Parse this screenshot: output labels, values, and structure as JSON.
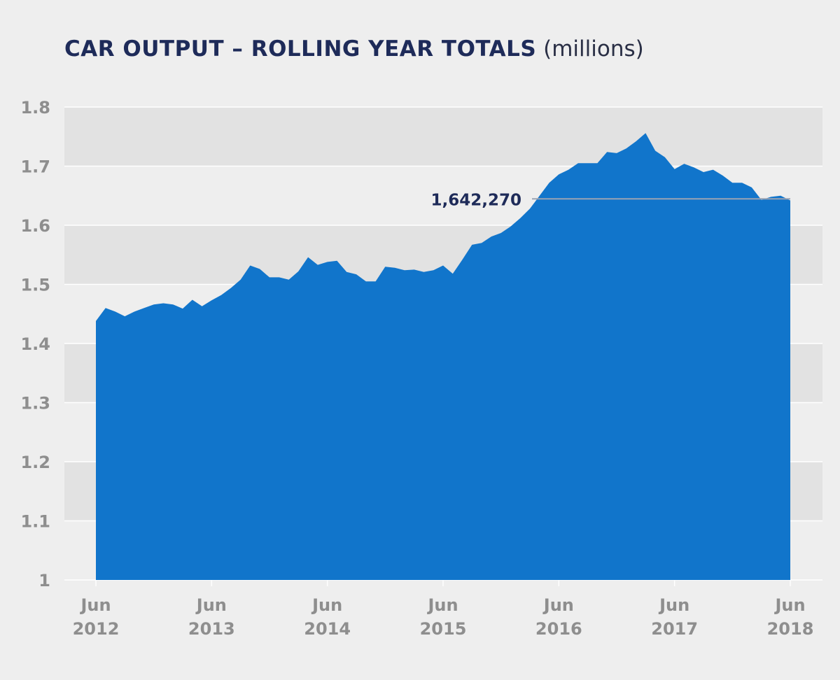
{
  "title": {
    "main": "CAR OUTPUT – ROLLING YEAR TOTALS",
    "unit": "(millions)"
  },
  "colors": {
    "area": "#1175cb",
    "band": "#e2e2e2",
    "grid": "#ffffff",
    "background": "#eeeeee",
    "callout_line": "#9aa3b3"
  },
  "chart_data": {
    "type": "area",
    "title": "CAR OUTPUT – ROLLING YEAR TOTALS (millions)",
    "ylim": [
      1,
      1.8
    ],
    "yticks": [
      "1",
      "1.1",
      "1.2",
      "1.3",
      "1.4",
      "1.5",
      "1.6",
      "1.7",
      "1.8"
    ],
    "xlim": [
      0,
      72
    ],
    "xticks": [
      {
        "x": 0,
        "line1": "Jun",
        "line2": "2012"
      },
      {
        "x": 12,
        "line1": "Jun",
        "line2": "2013"
      },
      {
        "x": 24,
        "line1": "Jun",
        "line2": "2014"
      },
      {
        "x": 36,
        "line1": "Jun",
        "line2": "2015"
      },
      {
        "x": 48,
        "line1": "Jun",
        "line2": "2016"
      },
      {
        "x": 60,
        "line1": "Jun",
        "line2": "2017"
      },
      {
        "x": 72,
        "line1": "Jun",
        "line2": "2018"
      }
    ],
    "grid": "horizontal, alternating bands",
    "values": [
      1.438,
      1.46,
      1.454,
      1.446,
      1.454,
      1.46,
      1.466,
      1.468,
      1.466,
      1.459,
      1.474,
      1.463,
      1.473,
      1.482,
      1.494,
      1.508,
      1.532,
      1.526,
      1.512,
      1.512,
      1.508,
      1.522,
      1.546,
      1.533,
      1.538,
      1.54,
      1.521,
      1.517,
      1.505,
      1.505,
      1.53,
      1.528,
      1.524,
      1.525,
      1.521,
      1.524,
      1.532,
      1.518,
      1.542,
      1.567,
      1.57,
      1.581,
      1.587,
      1.598,
      1.612,
      1.628,
      1.65,
      1.672,
      1.686,
      1.694,
      1.705,
      1.705,
      1.705,
      1.724,
      1.722,
      1.73,
      1.742,
      1.756,
      1.726,
      1.715,
      1.695,
      1.704,
      1.698,
      1.69,
      1.694,
      1.684,
      1.672,
      1.672,
      1.664,
      1.643,
      1.648,
      1.65,
      1.642
    ],
    "annotation": {
      "x": 72,
      "value": 1.64227,
      "label": "1,642,270"
    }
  }
}
